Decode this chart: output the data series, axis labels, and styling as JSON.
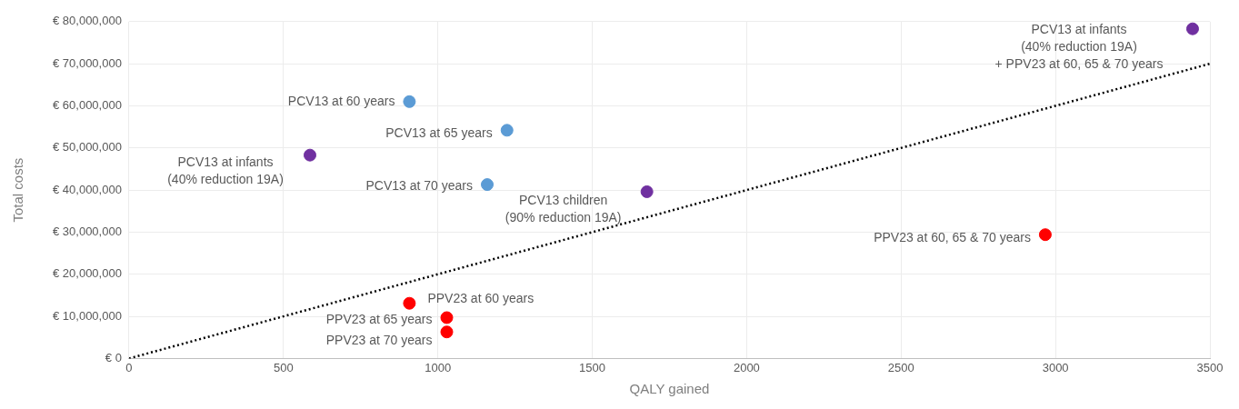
{
  "chart_data": {
    "type": "scatter",
    "xlabel": "QALY gained",
    "ylabel": "Total costs",
    "xlim": [
      0,
      3500
    ],
    "xticks": [
      0,
      500,
      1000,
      1500,
      2000,
      2500,
      3000,
      3500
    ],
    "ylim": [
      0,
      80000000
    ],
    "yticks": [
      {
        "value": 0,
        "label": "€ 0"
      },
      {
        "value": 10000000,
        "label": "€ 10,000,000"
      },
      {
        "value": 20000000,
        "label": "€ 20,000,000"
      },
      {
        "value": 30000000,
        "label": "€ 30,000,000"
      },
      {
        "value": 40000000,
        "label": "€ 40,000,000"
      },
      {
        "value": 50000000,
        "label": "€ 50,000,000"
      },
      {
        "value": 60000000,
        "label": "€ 60,000,000"
      },
      {
        "value": 70000000,
        "label": "€ 70,000,000"
      },
      {
        "value": 80000000,
        "label": "€ 80,000,000"
      }
    ],
    "grid": true,
    "legend": false,
    "marker": "circle",
    "series": [
      {
        "color": "#5b9bd5",
        "x": [
          908,
          1224,
          1160
        ],
        "values": [
          61000000,
          54200000,
          41300000
        ]
      },
      {
        "color": "#7030a0",
        "x": [
          586,
          1677,
          3444
        ],
        "values": [
          48300000,
          39600000,
          78300000
        ]
      },
      {
        "color": "#ff0000",
        "x": [
          908,
          1029,
          1029,
          2967
        ],
        "values": [
          13100000,
          9700000,
          6300000,
          29400000
        ]
      },
      {
        "type": "line",
        "color": "#000000",
        "line_style": "dotted",
        "marker": "none",
        "x": [
          0,
          3500
        ],
        "values": [
          0,
          70000000
        ]
      }
    ],
    "annotations": [
      {
        "text": "PCV13 at 60 years",
        "x": 908,
        "y": 61000000
      },
      {
        "text": "PCV13 at 65 years",
        "x": 1224,
        "y": 54200000
      },
      {
        "text": "PCV13 at 70 years",
        "x": 1160,
        "y": 41300000
      },
      {
        "text": "PCV13 at infants\n(40% reduction 19A)",
        "x": 586,
        "y": 48300000
      },
      {
        "text": "PCV13 children\n(90% reduction 19A)",
        "x": 1677,
        "y": 39600000
      },
      {
        "text": "PCV13 at infants\n(40% reduction 19A)\n+ PPV23 at 60, 65 & 70 years",
        "x": 3444,
        "y": 78300000
      },
      {
        "text": "PPV23 at 60 years",
        "x": 908,
        "y": 13100000
      },
      {
        "text": "PPV23 at 65 years",
        "x": 1029,
        "y": 9700000
      },
      {
        "text": "PPV23 at 70 years",
        "x": 1029,
        "y": 6300000
      },
      {
        "text": "PPV23 at 60, 65 & 70 years",
        "x": 2967,
        "y": 29400000
      }
    ]
  }
}
